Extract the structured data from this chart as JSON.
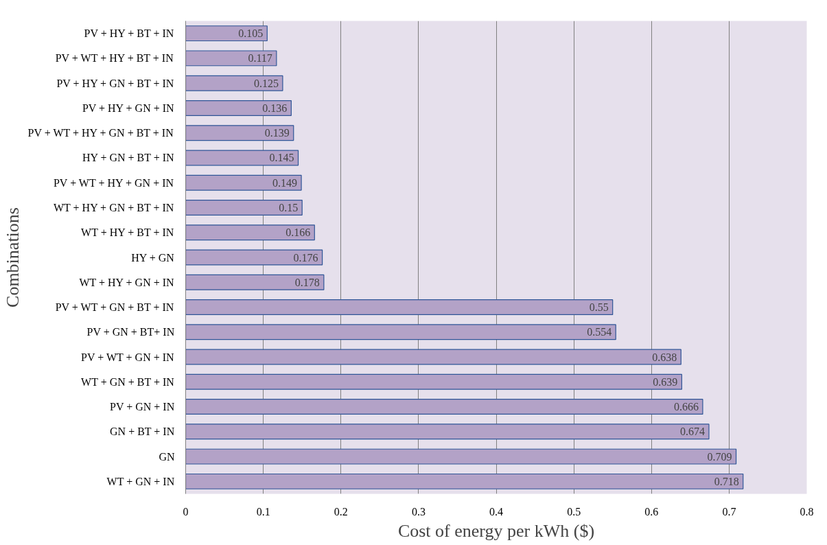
{
  "chart_data": {
    "type": "bar",
    "orientation": "horizontal",
    "xlabel": "Cost of energy per kWh ($)",
    "ylabel": "Combinations",
    "categories": [
      "PV + HY + BT + IN",
      "PV + WT + HY + BT + IN",
      "PV + HY + GN + BT + IN",
      "PV + HY + GN + IN",
      "PV + WT + HY + GN + BT + IN",
      "HY + GN + BT + IN",
      "PV + WT + HY + GN + IN",
      "WT + HY + GN + BT + IN",
      "WT + HY + BT + IN",
      "HY + GN",
      "WT + HY + GN + IN",
      "PV + WT + GN + BT + IN",
      "PV + GN + BT+ IN",
      "PV + WT + GN + IN",
      "WT + GN + BT + IN",
      "PV + GN + IN",
      "GN + BT + IN",
      "GN",
      "WT + GN + IN"
    ],
    "values": [
      0.105,
      0.117,
      0.125,
      0.136,
      0.139,
      0.145,
      0.149,
      0.15,
      0.166,
      0.176,
      0.178,
      0.55,
      0.554,
      0.638,
      0.639,
      0.666,
      0.674,
      0.709,
      0.718
    ],
    "color": "#b3a2c7",
    "data_labels": true,
    "grid": "x",
    "xlim": [
      0,
      0.8
    ],
    "xticks": [
      0,
      0.1,
      0.2,
      0.3,
      0.4,
      0.5,
      0.6,
      0.7,
      0.8
    ]
  }
}
